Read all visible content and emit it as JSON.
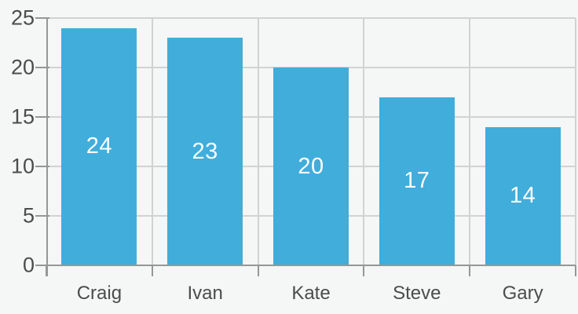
{
  "chart_data": {
    "type": "bar",
    "title": "",
    "categories": [
      "Craig",
      "Ivan",
      "Kate",
      "Steve",
      "Gary"
    ],
    "values": [
      24,
      23,
      20,
      17,
      14
    ],
    "bar_labels": [
      24,
      23,
      20,
      17,
      14
    ],
    "xlabel": "",
    "ylabel": "",
    "ylim": [
      0,
      25
    ],
    "yticks": [
      0,
      5,
      10,
      15,
      20,
      25
    ],
    "grid": true,
    "legend": false,
    "colors": {
      "bar": "#41ADDB",
      "bar_label": "#FFFFFF",
      "grid": "#D2D2D2",
      "axis": "#969696",
      "tick_label": "#4C4C4C",
      "background": "#F5F6F6"
    }
  }
}
